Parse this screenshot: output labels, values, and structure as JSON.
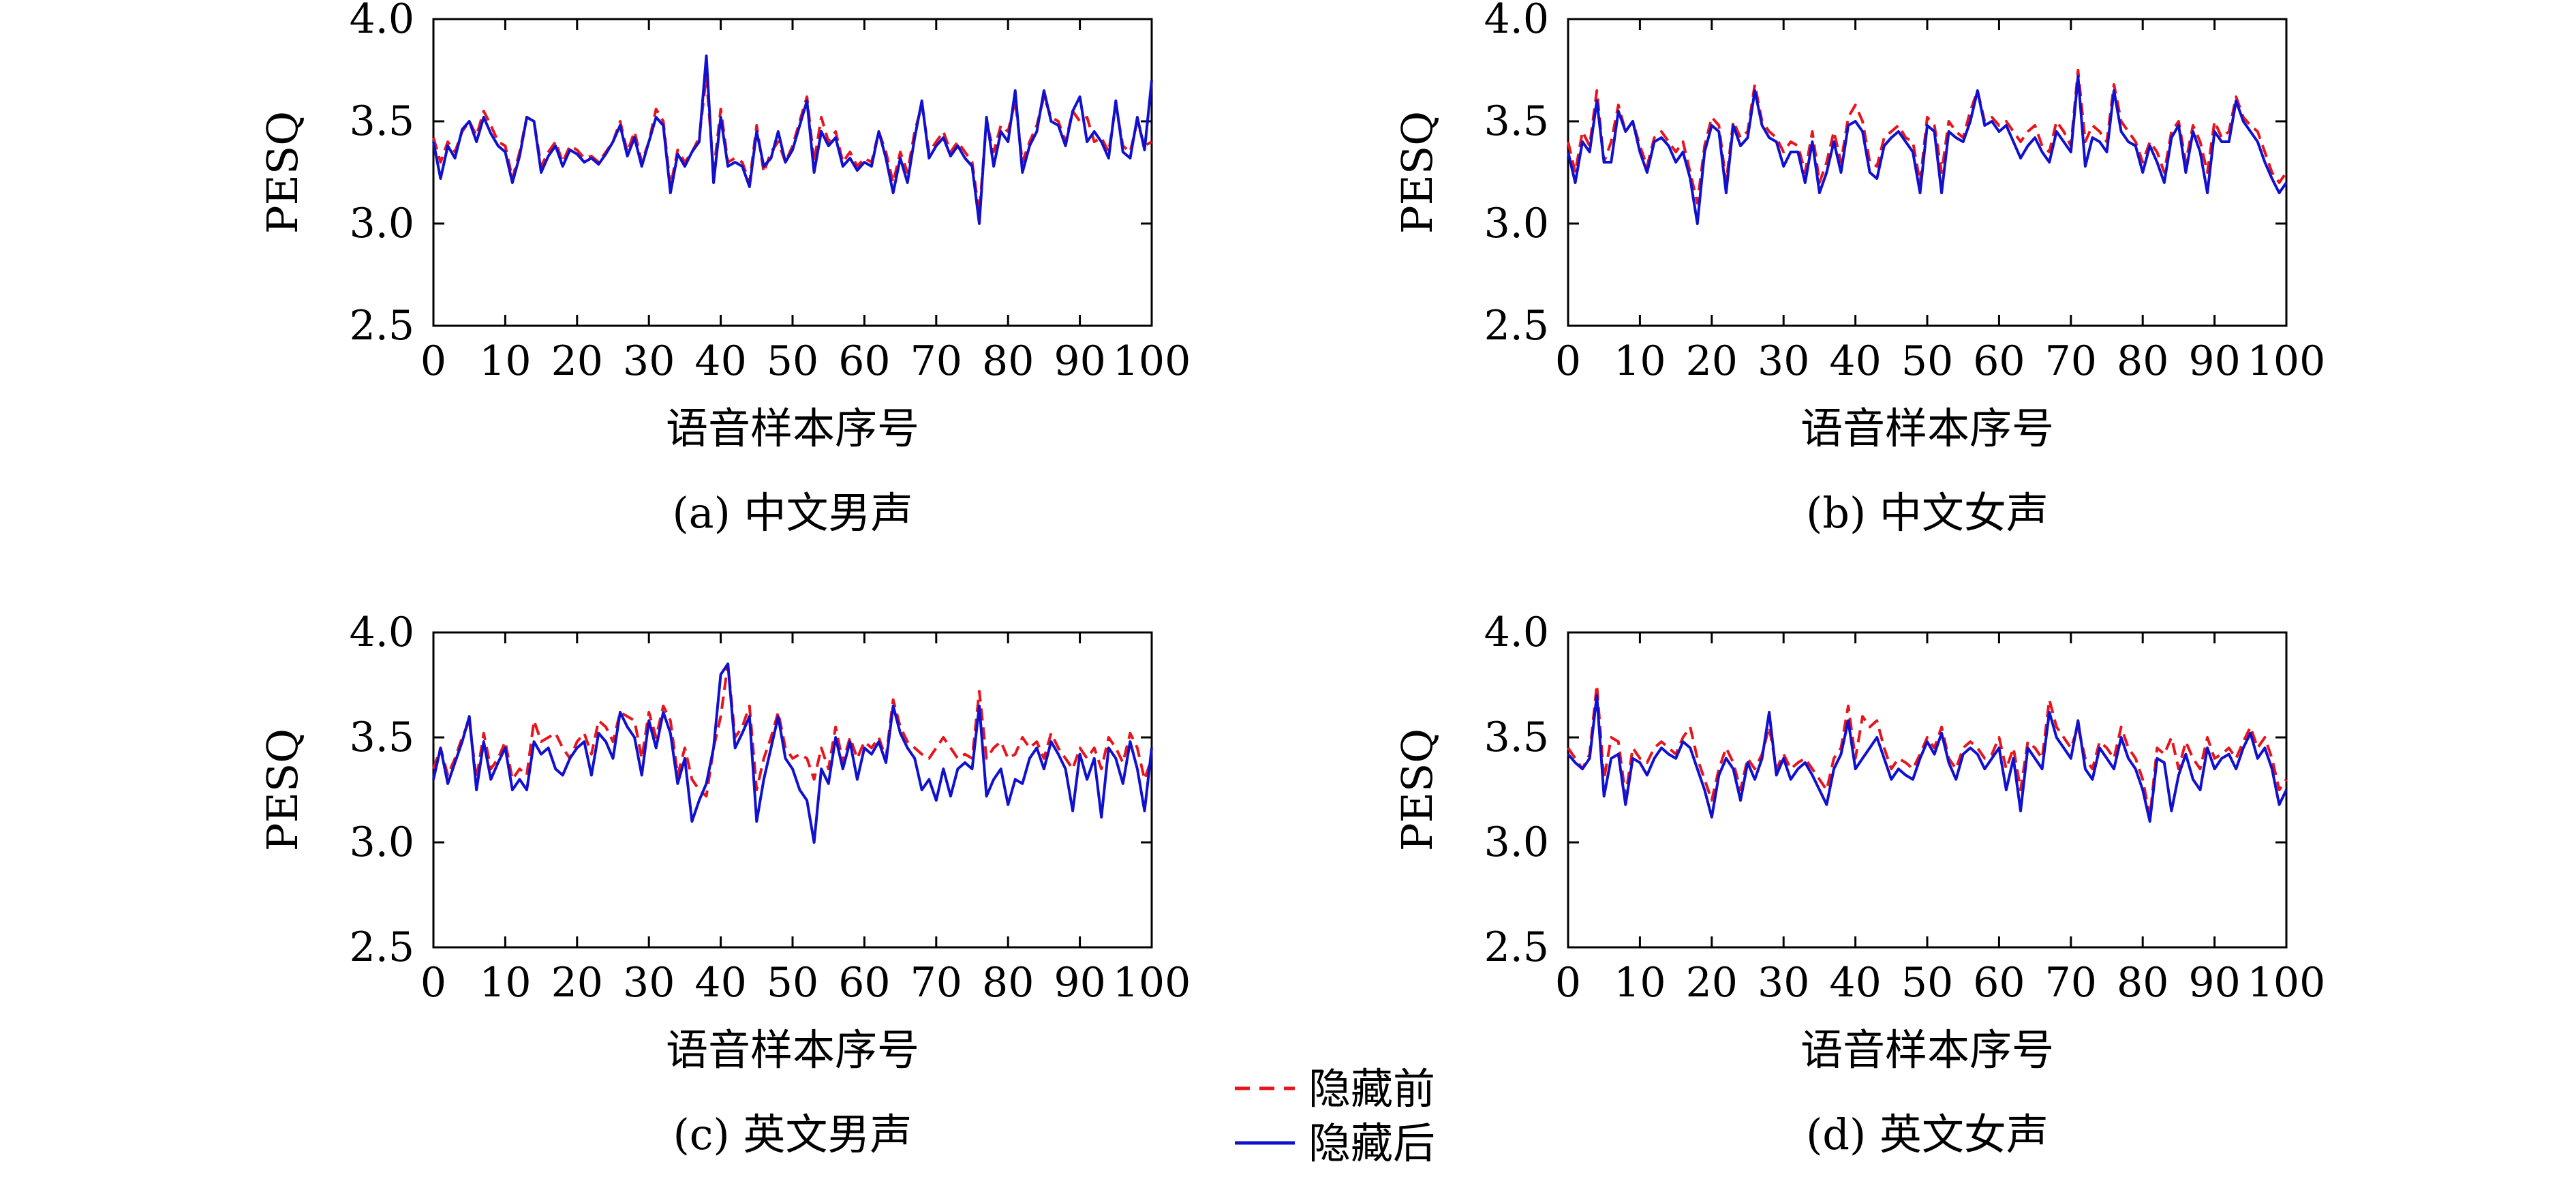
{
  "chart_data": [
    {
      "type": "line",
      "caption": "(a) 中文男声",
      "xlabel": "语音样本序号",
      "ylabel": "PESQ",
      "xlim": [
        0,
        100
      ],
      "ylim": [
        2.5,
        4.0
      ],
      "xticks": [
        "0",
        "10",
        "20",
        "30",
        "40",
        "50",
        "60",
        "70",
        "80",
        "90",
        "100"
      ],
      "yticks": [
        "2.5",
        "3.0",
        "3.5",
        "4.0"
      ],
      "series": [
        {
          "name": "隐藏前",
          "values": [
            3.42,
            3.3,
            3.4,
            3.35,
            3.45,
            3.5,
            3.43,
            3.55,
            3.48,
            3.4,
            3.38,
            3.22,
            3.35,
            3.52,
            3.5,
            3.28,
            3.35,
            3.4,
            3.3,
            3.38,
            3.36,
            3.32,
            3.33,
            3.3,
            3.35,
            3.4,
            3.5,
            3.35,
            3.45,
            3.3,
            3.4,
            3.56,
            3.5,
            3.18,
            3.36,
            3.3,
            3.35,
            3.42,
            3.72,
            3.25,
            3.56,
            3.3,
            3.32,
            3.3,
            3.2,
            3.48,
            3.25,
            3.35,
            3.4,
            3.3,
            3.38,
            3.5,
            3.62,
            3.3,
            3.52,
            3.4,
            3.45,
            3.3,
            3.35,
            3.28,
            3.32,
            3.3,
            3.45,
            3.35,
            3.2,
            3.35,
            3.25,
            3.45,
            3.58,
            3.35,
            3.4,
            3.45,
            3.35,
            3.4,
            3.35,
            3.3,
            3.05,
            3.5,
            3.35,
            3.48,
            3.45,
            3.6,
            3.3,
            3.4,
            3.48,
            3.62,
            3.52,
            3.5,
            3.4,
            3.55,
            3.5,
            3.52,
            3.4,
            3.42,
            3.35,
            3.58,
            3.38,
            3.35,
            3.5,
            3.38,
            3.4
          ]
        },
        {
          "name": "隐藏后",
          "values": [
            3.4,
            3.22,
            3.38,
            3.32,
            3.46,
            3.5,
            3.4,
            3.52,
            3.44,
            3.38,
            3.35,
            3.2,
            3.33,
            3.52,
            3.5,
            3.25,
            3.33,
            3.38,
            3.28,
            3.36,
            3.34,
            3.3,
            3.32,
            3.29,
            3.34,
            3.4,
            3.48,
            3.33,
            3.42,
            3.28,
            3.4,
            3.52,
            3.48,
            3.15,
            3.34,
            3.28,
            3.35,
            3.4,
            3.82,
            3.2,
            3.52,
            3.28,
            3.3,
            3.28,
            3.18,
            3.45,
            3.28,
            3.32,
            3.45,
            3.3,
            3.36,
            3.48,
            3.6,
            3.25,
            3.45,
            3.38,
            3.42,
            3.28,
            3.32,
            3.26,
            3.3,
            3.28,
            3.45,
            3.32,
            3.15,
            3.32,
            3.2,
            3.42,
            3.6,
            3.32,
            3.38,
            3.42,
            3.33,
            3.38,
            3.32,
            3.28,
            3.0,
            3.52,
            3.28,
            3.45,
            3.4,
            3.65,
            3.25,
            3.38,
            3.45,
            3.65,
            3.5,
            3.48,
            3.38,
            3.55,
            3.62,
            3.4,
            3.45,
            3.4,
            3.32,
            3.6,
            3.35,
            3.32,
            3.52,
            3.36,
            3.7
          ]
        }
      ]
    },
    {
      "type": "line",
      "caption": "(b) 中文女声",
      "xlabel": "语音样本序号",
      "ylabel": "PESQ",
      "xlim": [
        0,
        100
      ],
      "ylim": [
        2.5,
        4.0
      ],
      "xticks": [
        "0",
        "10",
        "20",
        "30",
        "40",
        "50",
        "60",
        "70",
        "80",
        "90",
        "100"
      ],
      "yticks": [
        "2.5",
        "3.0",
        "3.5",
        "4.0"
      ],
      "series": [
        {
          "name": "隐藏前",
          "values": [
            3.4,
            3.25,
            3.45,
            3.38,
            3.65,
            3.3,
            3.4,
            3.58,
            3.45,
            3.5,
            3.38,
            3.28,
            3.42,
            3.45,
            3.4,
            3.35,
            3.4,
            3.25,
            3.1,
            3.38,
            3.52,
            3.48,
            3.2,
            3.5,
            3.42,
            3.45,
            3.68,
            3.5,
            3.45,
            3.42,
            3.35,
            3.4,
            3.38,
            3.25,
            3.45,
            3.2,
            3.3,
            3.45,
            3.3,
            3.52,
            3.58,
            3.5,
            3.3,
            3.28,
            3.42,
            3.45,
            3.48,
            3.42,
            3.4,
            3.2,
            3.52,
            3.48,
            3.25,
            3.5,
            3.45,
            3.42,
            3.55,
            3.65,
            3.5,
            3.52,
            3.48,
            3.5,
            3.45,
            3.4,
            3.45,
            3.48,
            3.38,
            3.35,
            3.5,
            3.45,
            3.38,
            3.75,
            3.4,
            3.48,
            3.45,
            3.4,
            3.68,
            3.5,
            3.45,
            3.4,
            3.3,
            3.4,
            3.35,
            3.25,
            3.45,
            3.5,
            3.3,
            3.48,
            3.4,
            3.25,
            3.5,
            3.42,
            3.45,
            3.62,
            3.52,
            3.48,
            3.45,
            3.35,
            3.25,
            3.2,
            3.25
          ]
        },
        {
          "name": "隐藏后",
          "values": [
            3.35,
            3.2,
            3.4,
            3.35,
            3.6,
            3.3,
            3.3,
            3.55,
            3.45,
            3.5,
            3.35,
            3.25,
            3.4,
            3.42,
            3.38,
            3.3,
            3.35,
            3.22,
            3.0,
            3.35,
            3.48,
            3.45,
            3.15,
            3.48,
            3.38,
            3.42,
            3.65,
            3.48,
            3.42,
            3.4,
            3.28,
            3.35,
            3.35,
            3.2,
            3.4,
            3.15,
            3.25,
            3.4,
            3.25,
            3.48,
            3.5,
            3.45,
            3.25,
            3.22,
            3.38,
            3.42,
            3.45,
            3.4,
            3.35,
            3.15,
            3.48,
            3.45,
            3.15,
            3.45,
            3.42,
            3.4,
            3.5,
            3.65,
            3.48,
            3.5,
            3.45,
            3.48,
            3.4,
            3.32,
            3.38,
            3.42,
            3.35,
            3.3,
            3.45,
            3.4,
            3.35,
            3.72,
            3.28,
            3.42,
            3.4,
            3.35,
            3.65,
            3.45,
            3.4,
            3.38,
            3.25,
            3.38,
            3.3,
            3.2,
            3.42,
            3.48,
            3.25,
            3.45,
            3.35,
            3.15,
            3.45,
            3.4,
            3.4,
            3.6,
            3.5,
            3.45,
            3.4,
            3.3,
            3.22,
            3.15,
            3.2
          ]
        }
      ]
    },
    {
      "type": "line",
      "caption": "(c) 英文男声",
      "xlabel": "语音样本序号",
      "ylabel": "PESQ",
      "xlim": [
        0,
        100
      ],
      "ylim": [
        2.5,
        4.0
      ],
      "xticks": [
        "0",
        "10",
        "20",
        "30",
        "40",
        "50",
        "60",
        "70",
        "80",
        "90",
        "100"
      ],
      "yticks": [
        "2.5",
        "3.0",
        "3.5",
        "4.0"
      ],
      "series": [
        {
          "name": "隐藏前",
          "values": [
            3.35,
            3.45,
            3.32,
            3.4,
            3.5,
            3.58,
            3.3,
            3.52,
            3.35,
            3.4,
            3.48,
            3.3,
            3.35,
            3.32,
            3.58,
            3.48,
            3.5,
            3.52,
            3.45,
            3.4,
            3.48,
            3.52,
            3.42,
            3.58,
            3.55,
            3.48,
            3.62,
            3.6,
            3.58,
            3.4,
            3.62,
            3.5,
            3.65,
            3.58,
            3.32,
            3.45,
            3.3,
            3.25,
            3.22,
            3.45,
            3.6,
            3.85,
            3.5,
            3.55,
            3.65,
            3.25,
            3.4,
            3.5,
            3.62,
            3.45,
            3.4,
            3.42,
            3.4,
            3.3,
            3.45,
            3.35,
            3.55,
            3.38,
            3.5,
            3.4,
            3.48,
            3.45,
            3.5,
            3.4,
            3.68,
            3.55,
            3.48,
            3.45,
            3.42,
            3.4,
            3.45,
            3.5,
            3.45,
            3.4,
            3.42,
            3.4,
            3.72,
            3.4,
            3.45,
            3.48,
            3.4,
            3.42,
            3.5,
            3.45,
            3.48,
            3.4,
            3.52,
            3.45,
            3.4,
            3.35,
            3.45,
            3.4,
            3.45,
            3.35,
            3.5,
            3.45,
            3.38,
            3.52,
            3.45,
            3.3,
            3.4
          ]
        },
        {
          "name": "隐藏后",
          "values": [
            3.3,
            3.45,
            3.28,
            3.38,
            3.48,
            3.6,
            3.25,
            3.48,
            3.3,
            3.38,
            3.45,
            3.25,
            3.3,
            3.25,
            3.48,
            3.42,
            3.45,
            3.35,
            3.32,
            3.4,
            3.45,
            3.48,
            3.32,
            3.52,
            3.48,
            3.4,
            3.62,
            3.55,
            3.5,
            3.32,
            3.58,
            3.45,
            3.62,
            3.52,
            3.28,
            3.4,
            3.1,
            3.2,
            3.28,
            3.45,
            3.8,
            3.85,
            3.45,
            3.52,
            3.6,
            3.1,
            3.3,
            3.45,
            3.6,
            3.4,
            3.35,
            3.25,
            3.2,
            3.0,
            3.35,
            3.28,
            3.5,
            3.35,
            3.48,
            3.3,
            3.45,
            3.42,
            3.48,
            3.38,
            3.65,
            3.52,
            3.45,
            3.4,
            3.25,
            3.3,
            3.2,
            3.35,
            3.22,
            3.35,
            3.38,
            3.35,
            3.65,
            3.22,
            3.3,
            3.35,
            3.18,
            3.3,
            3.28,
            3.4,
            3.45,
            3.35,
            3.48,
            3.42,
            3.35,
            3.15,
            3.42,
            3.3,
            3.4,
            3.12,
            3.45,
            3.4,
            3.28,
            3.48,
            3.35,
            3.15,
            3.45
          ]
        }
      ]
    },
    {
      "type": "line",
      "caption": "(d) 英文女声",
      "xlabel": "语音样本序号",
      "ylabel": "PESQ",
      "xlim": [
        0,
        100
      ],
      "ylim": [
        2.5,
        4.0
      ],
      "xticks": [
        "0",
        "10",
        "20",
        "30",
        "40",
        "50",
        "60",
        "70",
        "80",
        "90",
        "100"
      ],
      "yticks": [
        "2.5",
        "3.0",
        "3.5",
        "4.0"
      ],
      "series": [
        {
          "name": "隐藏前",
          "values": [
            3.45,
            3.4,
            3.35,
            3.42,
            3.75,
            3.3,
            3.5,
            3.48,
            3.22,
            3.45,
            3.4,
            3.38,
            3.45,
            3.48,
            3.45,
            3.42,
            3.5,
            3.55,
            3.4,
            3.3,
            3.2,
            3.35,
            3.45,
            3.38,
            3.25,
            3.4,
            3.35,
            3.42,
            3.55,
            3.35,
            3.42,
            3.35,
            3.38,
            3.4,
            3.35,
            3.3,
            3.25,
            3.4,
            3.45,
            3.65,
            3.4,
            3.6,
            3.55,
            3.58,
            3.45,
            3.35,
            3.4,
            3.38,
            3.35,
            3.42,
            3.5,
            3.45,
            3.55,
            3.4,
            3.35,
            3.45,
            3.48,
            3.45,
            3.4,
            3.42,
            3.5,
            3.35,
            3.45,
            3.25,
            3.48,
            3.45,
            3.4,
            3.68,
            3.55,
            3.5,
            3.45,
            3.55,
            3.4,
            3.35,
            3.48,
            3.45,
            3.4,
            3.55,
            3.45,
            3.4,
            3.3,
            3.12,
            3.45,
            3.42,
            3.5,
            3.35,
            3.48,
            3.4,
            3.35,
            3.5,
            3.4,
            3.42,
            3.45,
            3.4,
            3.48,
            3.55,
            3.45,
            3.5,
            3.4,
            3.25,
            3.3
          ]
        },
        {
          "name": "隐藏后",
          "values": [
            3.42,
            3.38,
            3.35,
            3.4,
            3.7,
            3.22,
            3.4,
            3.42,
            3.18,
            3.4,
            3.38,
            3.32,
            3.4,
            3.45,
            3.42,
            3.4,
            3.48,
            3.45,
            3.35,
            3.25,
            3.12,
            3.32,
            3.4,
            3.35,
            3.2,
            3.38,
            3.3,
            3.4,
            3.62,
            3.32,
            3.4,
            3.3,
            3.35,
            3.38,
            3.32,
            3.25,
            3.18,
            3.35,
            3.42,
            3.58,
            3.35,
            3.4,
            3.45,
            3.5,
            3.4,
            3.3,
            3.35,
            3.32,
            3.3,
            3.4,
            3.48,
            3.42,
            3.52,
            3.38,
            3.3,
            3.42,
            3.45,
            3.42,
            3.35,
            3.4,
            3.45,
            3.25,
            3.4,
            3.15,
            3.45,
            3.4,
            3.35,
            3.62,
            3.5,
            3.45,
            3.4,
            3.58,
            3.35,
            3.3,
            3.45,
            3.4,
            3.35,
            3.5,
            3.4,
            3.35,
            3.25,
            3.1,
            3.4,
            3.38,
            3.15,
            3.32,
            3.42,
            3.3,
            3.25,
            3.45,
            3.35,
            3.4,
            3.42,
            3.35,
            3.45,
            3.52,
            3.4,
            3.45,
            3.35,
            3.18,
            3.25
          ]
        }
      ]
    }
  ],
  "legend": {
    "before_label": "隐藏前",
    "after_label": "隐藏后",
    "before_color": "#e8141c",
    "after_color": "#1010d0"
  }
}
